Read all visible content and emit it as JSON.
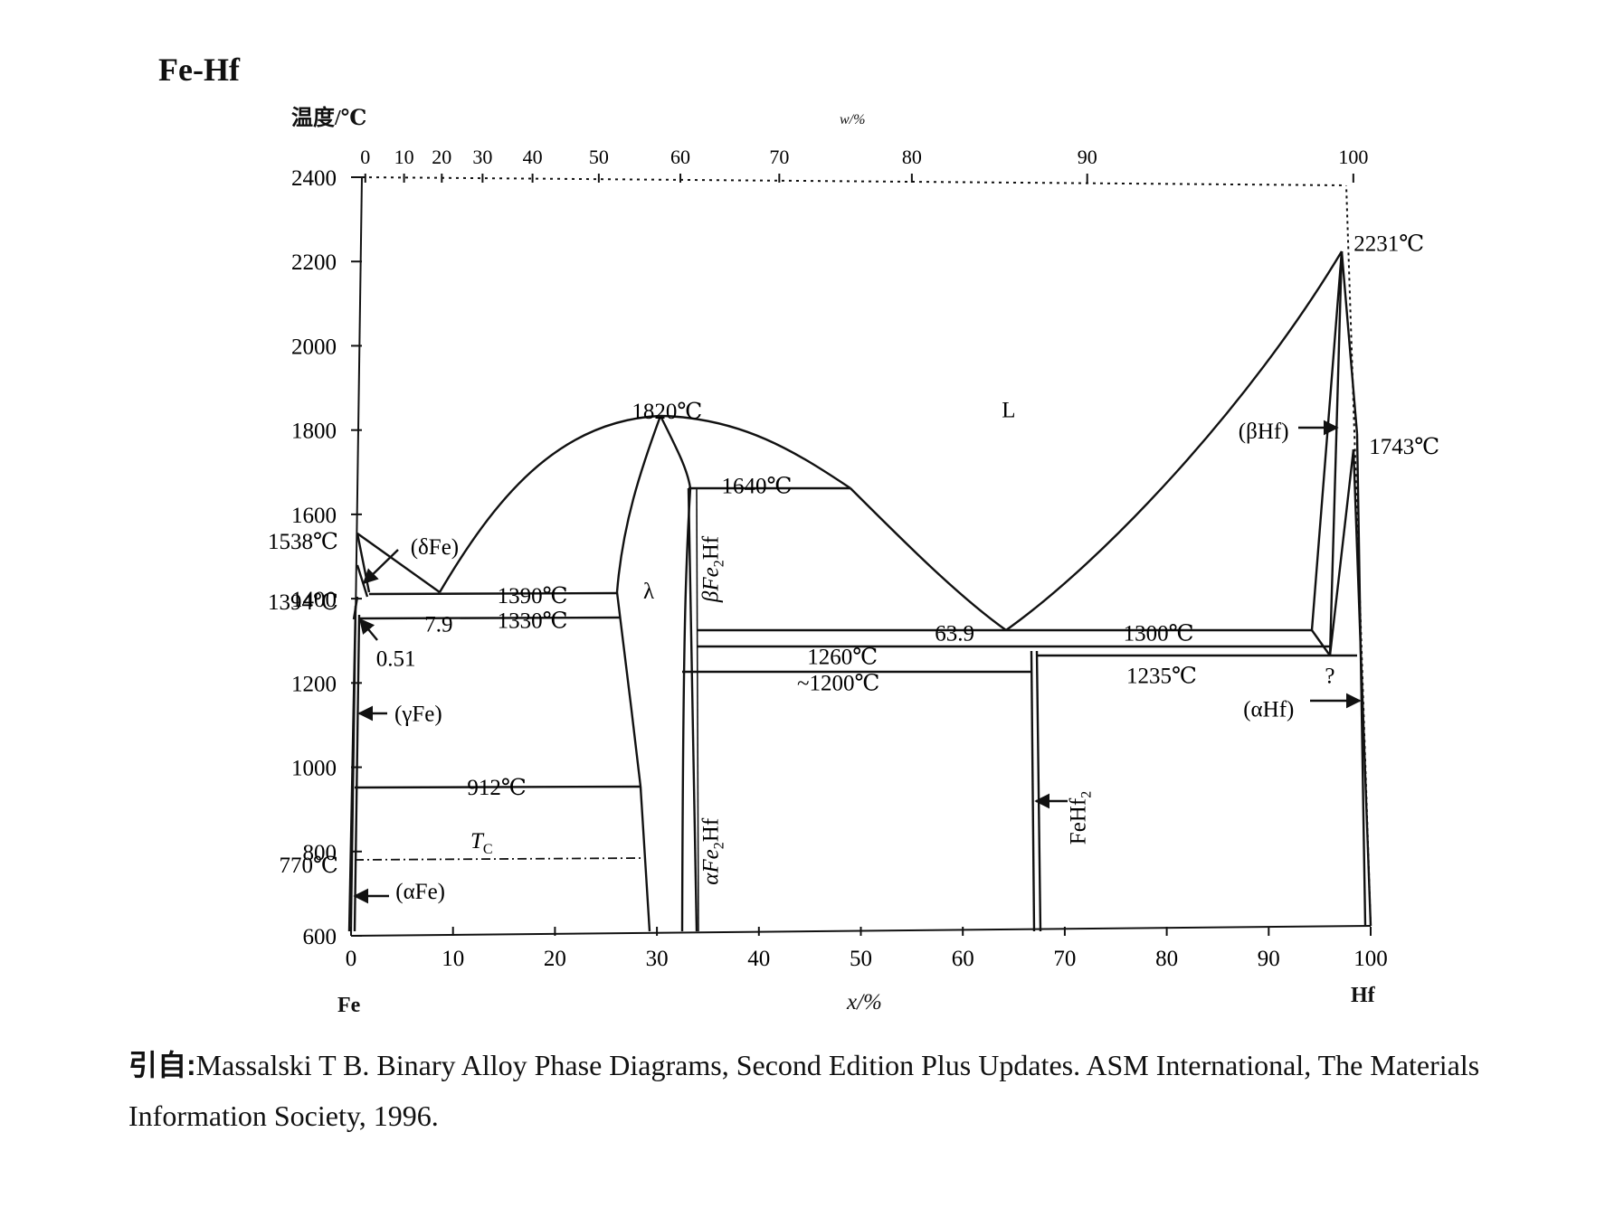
{
  "title": "Fe-Hf",
  "y_axis_label": "温度/℃",
  "top_axis_label": "w/%",
  "x_axis_label": "x/%",
  "element_left": "Fe",
  "element_right": "Hf",
  "citation": {
    "prefix": "引自:",
    "text": "Massalski T B.  Binary Alloy Phase Diagrams, Second Edition Plus Updates.  ASM International, The Materials Information Society, 1996."
  },
  "axes": {
    "x_range": [
      0,
      100
    ],
    "y_range": [
      600,
      2400
    ],
    "y_ticks": [
      600,
      800,
      1000,
      1200,
      1400,
      1600,
      1800,
      2000,
      2200,
      2400
    ],
    "x_ticks": [
      0,
      10,
      20,
      30,
      40,
      50,
      60,
      70,
      80,
      90,
      100
    ],
    "top_ticks": [
      {
        "label": "0",
        "x": 1.4
      },
      {
        "label": "10",
        "x": 5.2
      },
      {
        "label": "20",
        "x": 8.9
      },
      {
        "label": "30",
        "x": 12.9
      },
      {
        "label": "40",
        "x": 17.8
      },
      {
        "label": "50",
        "x": 24.3
      },
      {
        "label": "60",
        "x": 32.3
      },
      {
        "label": "70",
        "x": 42.0
      },
      {
        "label": "80",
        "x": 55.0
      },
      {
        "label": "90",
        "x": 72.2
      },
      {
        "label": "100",
        "x": 98.3
      }
    ]
  },
  "labels": [
    {
      "text": "1820℃",
      "x": 31.0,
      "y": 1827
    },
    {
      "text": "1640℃",
      "x": 39.8,
      "y": 1650
    },
    {
      "text": "L",
      "x": 64.5,
      "y": 1830
    },
    {
      "text": "(βHf)",
      "x": 89.5,
      "y": 1780
    },
    {
      "text": "2231℃",
      "x": 101.8,
      "y": 2225
    },
    {
      "text": "1743℃",
      "x": 103.3,
      "y": 1743
    },
    {
      "text": "(δFe)",
      "x": 8.2,
      "y": 1505
    },
    {
      "text": "1390℃",
      "x": 17.8,
      "y": 1390
    },
    {
      "text": "7.9",
      "x": 8.6,
      "y": 1322
    },
    {
      "text": "1330℃",
      "x": 17.8,
      "y": 1330
    },
    {
      "text": "λ",
      "x": 29.2,
      "y": 1400
    },
    {
      "text": "63.9",
      "x": 59.2,
      "y": 1300
    },
    {
      "text": "1300℃",
      "x": 79.2,
      "y": 1300
    },
    {
      "text": "1260℃",
      "x": 48.2,
      "y": 1245
    },
    {
      "text": "~1200℃",
      "x": 47.8,
      "y": 1183
    },
    {
      "text": "1235℃",
      "x": 79.5,
      "y": 1200
    },
    {
      "text": "?",
      "x": 96.0,
      "y": 1200
    },
    {
      "text": "0.51",
      "x": 4.4,
      "y": 1240
    },
    {
      "text": "(γFe)",
      "x": 6.6,
      "y": 1110
    },
    {
      "text": "912℃",
      "x": 14.3,
      "y": 935
    },
    {
      "text": "(αHf)",
      "x": 90.0,
      "y": 1120
    },
    {
      "text": "(αFe)",
      "x": 6.8,
      "y": 688
    }
  ],
  "tc_label": {
    "main": "T",
    "sub": "C",
    "x": 12.8,
    "y": 808
  },
  "vertical_labels": [
    {
      "main": "βFe",
      "sub": "2",
      "tail": "Hf",
      "x": 36.0,
      "y": 1470
    },
    {
      "main": "αFe",
      "sub": "2",
      "tail": "Hf",
      "x": 36.0,
      "y": 800
    },
    {
      "main": "FeHf",
      "sub": "2",
      "tail": "",
      "x": 72.0,
      "y": 880
    }
  ],
  "left_temperature_labels": [
    {
      "text": "1538℃",
      "y": 1538
    },
    {
      "text": "1394℃",
      "y": 1394
    },
    {
      "text": "770℃",
      "y": 770
    }
  ]
}
